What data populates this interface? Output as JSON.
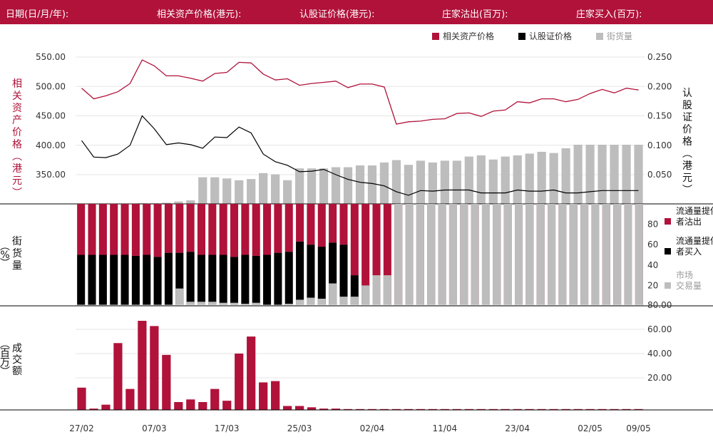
{
  "header": {
    "date": "日期(日/月/年):",
    "underlying": "相关资产价格(港元):",
    "warrant": "认股证价格(港元):",
    "dealer_sell": "庄家沽出(百万):",
    "dealer_buy": "庄家买入(百万):"
  },
  "legend": {
    "underlying": "相关资产价格",
    "warrant": "认股证价格",
    "street": "街货量"
  },
  "colors": {
    "brand": "#b0123a",
    "black": "#000000",
    "grey": "#bdbdbd"
  },
  "chart_data": [
    {
      "type": "line",
      "left_axis_label": "相关资产价格(港元)",
      "right_axis_label": "认股证价格(港元)",
      "left_ticks": [
        "550.00",
        "500.00",
        "450.00",
        "400.00",
        "350.00"
      ],
      "left_tick_values": [
        550,
        500,
        450,
        400,
        350
      ],
      "right_ticks": [
        "0.250",
        "0.200",
        "0.150",
        "0.100",
        "0.050"
      ],
      "right_tick_values": [
        0.25,
        0.2,
        0.15,
        0.1,
        0.05
      ],
      "underlying": [
        497,
        479,
        484,
        491,
        505,
        545,
        535,
        518,
        518,
        514,
        509,
        522,
        524,
        541,
        540,
        521,
        511,
        513,
        502,
        505,
        507,
        509,
        498,
        504,
        504,
        499,
        436,
        440,
        441,
        444,
        445,
        454,
        455,
        449,
        458,
        460,
        474,
        472,
        479,
        479,
        474,
        478,
        488,
        495,
        489,
        497,
        494
      ],
      "warrant": [
        0.108,
        0.08,
        0.079,
        0.085,
        0.1,
        0.15,
        0.128,
        0.101,
        0.104,
        0.101,
        0.095,
        0.114,
        0.113,
        0.131,
        0.121,
        0.085,
        0.072,
        0.066,
        0.055,
        0.056,
        0.059,
        0.05,
        0.042,
        0.037,
        0.035,
        0.031,
        0.021,
        0.015,
        0.023,
        0.022,
        0.024,
        0.024,
        0.024,
        0.019,
        0.019,
        0.019,
        0.024,
        0.022,
        0.022,
        0.024,
        0.019,
        0.019,
        0.021,
        0.023,
        0.023,
        0.023,
        0.023
      ],
      "street_pct": [
        0,
        0,
        0,
        0,
        0,
        1,
        1,
        2,
        4,
        6,
        45,
        45,
        43,
        40,
        42,
        52,
        50,
        40,
        60,
        60,
        60,
        62,
        62,
        65,
        65,
        70,
        74,
        66,
        73,
        70,
        73,
        73,
        80,
        82,
        75,
        80,
        82,
        85,
        88,
        86,
        94,
        100,
        100,
        100,
        100,
        100,
        100
      ]
    },
    {
      "type": "bar",
      "label": "街货量(%)",
      "y_ticks": [
        "80",
        "60",
        "40",
        "20"
      ],
      "y_tick_values": [
        80,
        60,
        40,
        20
      ],
      "legend": [
        "流通量提供者沽出",
        "流通量提供者买入",
        "市场交易量"
      ],
      "sell_pct": [
        50,
        50,
        50,
        50,
        50,
        51,
        50,
        52,
        48,
        48,
        47,
        50,
        50,
        50,
        52,
        50,
        51,
        50,
        48,
        47,
        37,
        40,
        42,
        38,
        40,
        70,
        100,
        100,
        100,
        100,
        100,
        100,
        100,
        100,
        100,
        100,
        100,
        100,
        100,
        100,
        100,
        100,
        100,
        100,
        100,
        100,
        100,
        100,
        100,
        100,
        100,
        100
      ],
      "buy_pct": [
        50,
        50,
        50,
        50,
        50,
        49,
        50,
        48,
        52,
        52,
        53,
        50,
        50,
        50,
        48,
        50,
        49,
        50,
        52,
        53,
        63,
        60,
        58,
        62,
        60,
        30,
        0,
        0,
        0,
        0,
        0,
        0,
        0,
        0,
        0,
        0,
        0,
        0,
        0,
        0,
        0,
        0,
        0,
        0,
        0,
        0,
        0,
        0,
        0,
        0,
        0,
        0
      ],
      "market_pct": [
        0,
        0,
        0,
        0,
        0,
        0,
        0,
        0,
        1,
        17,
        4,
        4,
        4,
        3,
        3,
        2,
        3,
        1,
        1,
        2,
        6,
        8,
        7,
        22,
        9,
        9,
        20,
        30,
        30,
        100,
        100,
        100,
        100,
        100,
        100,
        100,
        100,
        100,
        100,
        100,
        100,
        100,
        100,
        100,
        100,
        100,
        100,
        100,
        100,
        100,
        100,
        100
      ]
    },
    {
      "type": "bar",
      "label": "成交额(百万)",
      "y_ticks": [
        "80.00",
        "60.00",
        "40.00",
        "20.00"
      ],
      "y_tick_values": [
        80,
        60,
        40,
        20
      ],
      "x_ticks": [
        "27/02",
        "07/03",
        "17/03",
        "25/03",
        "02/04",
        "11/04",
        "23/04",
        "02/05",
        "09/05"
      ],
      "x_tick_index": [
        0,
        6,
        12,
        18,
        24,
        30,
        36,
        42,
        46
      ],
      "values": [
        17,
        1,
        4,
        51,
        16,
        68,
        64,
        42,
        6,
        8,
        6,
        16,
        7,
        43,
        56,
        21,
        22,
        3,
        3,
        2,
        1,
        1,
        0.5,
        0.5,
        0.5,
        0.5,
        0.5,
        0.5,
        0.5,
        0.5,
        0.5,
        0.5,
        0.5,
        0.5,
        0.5,
        0.5,
        0.5,
        0.5,
        0.5,
        0.5,
        0.5,
        0.5,
        0.5,
        0.5,
        0.5,
        0.5,
        0.5
      ]
    }
  ]
}
